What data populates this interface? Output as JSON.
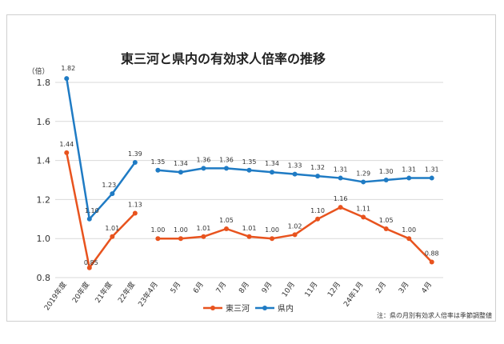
{
  "chart_data": {
    "type": "line",
    "title": "東三河と県内の有効求人倍率の推移",
    "ylabel": "（倍）",
    "ylim": [
      0.8,
      1.8
    ],
    "yticks": [
      "0.8",
      "1.0",
      "1.2",
      "1.4",
      "1.6",
      "1.8"
    ],
    "grid": true,
    "legend_position": "bottom-center",
    "note": "注：県の月別有効求人倍率は季節調整値",
    "categories": [
      "2019年度",
      "20年度",
      "21年度",
      "22年度",
      "23年4月",
      "5月",
      "6月",
      "7月",
      "8月",
      "9月",
      "10月",
      "11月",
      "12月",
      "24年1月",
      "2月",
      "3月",
      "4月"
    ],
    "groups": [
      [
        0,
        3
      ],
      [
        4,
        16
      ]
    ],
    "series": [
      {
        "name": "東三河",
        "color": "#e8531e",
        "values": [
          1.44,
          0.85,
          1.01,
          1.13,
          1.0,
          1.0,
          1.01,
          1.05,
          1.01,
          1.0,
          1.02,
          1.1,
          1.16,
          1.11,
          1.05,
          1.0,
          0.88
        ],
        "labels": [
          "1.44",
          "0.85",
          "1.01",
          "1.13",
          "1.00",
          "1.00",
          "1.01",
          "1.05",
          "1.01",
          "1.00",
          "1.02",
          "1.10",
          "1.16",
          "1.11",
          "1.05",
          "1.00",
          "0.88"
        ]
      },
      {
        "name": "県内",
        "color": "#1f7bc4",
        "values": [
          1.82,
          1.1,
          1.23,
          1.39,
          1.35,
          1.34,
          1.36,
          1.36,
          1.35,
          1.34,
          1.33,
          1.32,
          1.31,
          1.29,
          1.3,
          1.31,
          1.31
        ],
        "labels": [
          "1.82",
          "1.10",
          "1.23",
          "1.39",
          "1.35",
          "1.34",
          "1.36",
          "1.36",
          "1.35",
          "1.34",
          "1.33",
          "1.32",
          "1.31",
          "1.29",
          "1.30",
          "1.31",
          "1.31"
        ]
      }
    ]
  }
}
